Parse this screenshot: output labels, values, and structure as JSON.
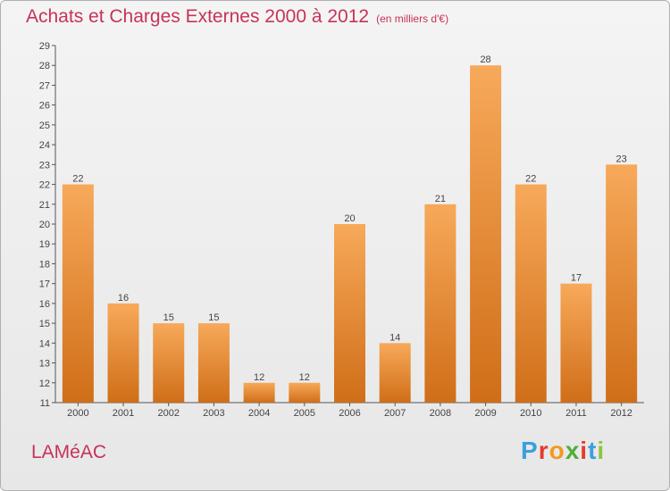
{
  "header": {
    "title": "Achats et Charges Externes 2000 à 2012",
    "unit": "(en milliers d'€)"
  },
  "footer": {
    "commune": "LAMéAC",
    "logo_letters": [
      "P",
      "r",
      "o",
      "x",
      "i",
      "t",
      "i"
    ],
    "logo_colors": [
      "#3aa0dc",
      "#e63a2e",
      "#f29a1f",
      "#4fae3a",
      "#e63a2e",
      "#3aa0dc",
      "#8cc63f"
    ]
  },
  "chart_data": {
    "type": "bar",
    "title": "Achats et Charges Externes 2000 à 2012",
    "xlabel": "",
    "ylabel": "",
    "categories": [
      "2000",
      "2001",
      "2002",
      "2003",
      "2004",
      "2005",
      "2006",
      "2007",
      "2008",
      "2009",
      "2010",
      "2011",
      "2012"
    ],
    "values": [
      22,
      16,
      15,
      15,
      12,
      12,
      20,
      14,
      21,
      28,
      22,
      17,
      23
    ],
    "ylim": [
      11,
      29
    ],
    "yticks": [
      11,
      12,
      13,
      14,
      15,
      16,
      17,
      18,
      19,
      20,
      21,
      22,
      23,
      24,
      25,
      26,
      27,
      28,
      29
    ],
    "grid": false,
    "bar_color_top": "#f7a95a",
    "bar_color_bottom": "#d06e18"
  }
}
